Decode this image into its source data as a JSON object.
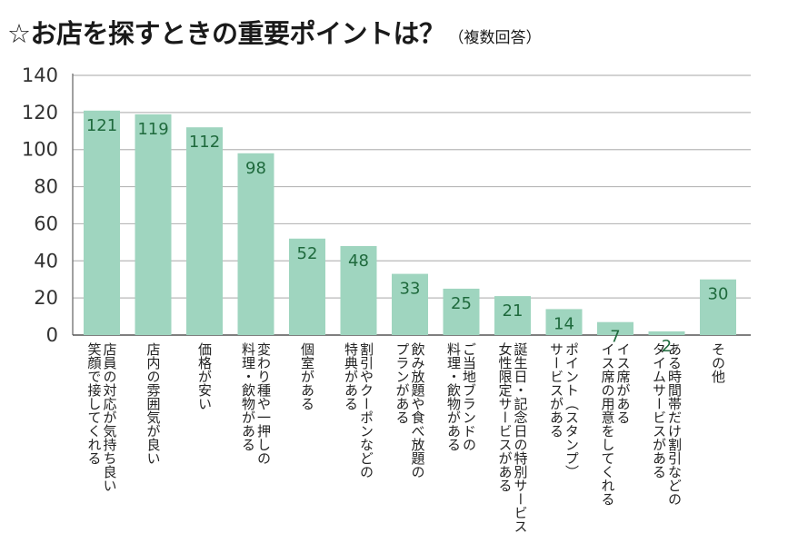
{
  "title": "☆お店を探すときの重要ポイントは？",
  "subtitle": "（複数回答）",
  "chart_data": {
    "type": "bar",
    "categories": [
      [
        "店員の対応が気持ち良い",
        "笑顔で接してくれる"
      ],
      [
        "店内の雰囲気が良い"
      ],
      [
        "価格が安い"
      ],
      [
        "変わり種や一押しの",
        "料理・飲物がある"
      ],
      [
        "個室がある"
      ],
      [
        "割引やクーポンなどの",
        "特典がある"
      ],
      [
        "飲み放題や食べ放題の",
        "プランがある"
      ],
      [
        "ご当地ブランドの",
        "料理・飲物がある"
      ],
      [
        "誕生日・記念日の特別サービス",
        "女性限定サービスがある"
      ],
      [
        "ポイント（スタンプ）",
        "サービスがある"
      ],
      [
        "イス席がある",
        "イス席の用意をしてくれる"
      ],
      [
        "ある時間帯だけ割引などの",
        "タイムサービスがある"
      ],
      [
        "その他"
      ]
    ],
    "values": [
      121,
      119,
      112,
      98,
      52,
      48,
      33,
      25,
      21,
      14,
      7,
      2,
      30
    ],
    "yticks": [
      0,
      20,
      40,
      60,
      80,
      100,
      120,
      140
    ],
    "ylim": [
      0,
      140
    ],
    "grid": true,
    "bar_color": "#9fd5bf",
    "label_color": "#1f6a3d",
    "grid_color": "#b8b8b8"
  }
}
